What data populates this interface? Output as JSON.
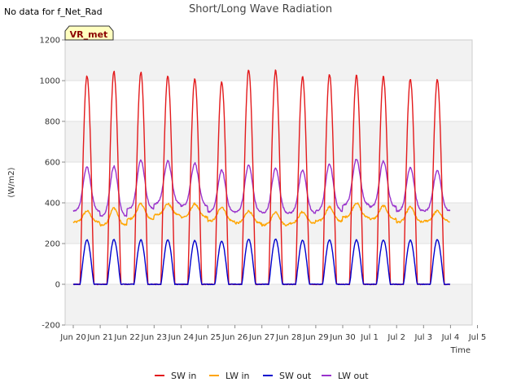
{
  "note": "No data for f_Net_Rad",
  "badge": "VR_met",
  "chart_data": {
    "type": "line",
    "title": "Short/Long Wave Radiation",
    "xlabel": "Time",
    "ylabel": "(W/m2)",
    "ylim": [
      -200,
      1200
    ],
    "xlim": [
      0,
      15
    ],
    "yticks": [
      -200,
      0,
      200,
      400,
      600,
      800,
      1000,
      1200
    ],
    "xticks": [
      {
        "x": 0,
        "label": "Jun 20"
      },
      {
        "x": 1,
        "label": "Jun 21"
      },
      {
        "x": 2,
        "label": "Jun 22"
      },
      {
        "x": 3,
        "label": "Jun 23"
      },
      {
        "x": 4,
        "label": "Jun 24"
      },
      {
        "x": 5,
        "label": "Jun 25"
      },
      {
        "x": 6,
        "label": "Jun 26"
      },
      {
        "x": 7,
        "label": "Jun 27"
      },
      {
        "x": 8,
        "label": "Jun 28"
      },
      {
        "x": 9,
        "label": "Jun 29"
      },
      {
        "x": 10,
        "label": "Jun 30"
      },
      {
        "x": 11,
        "label": "Jul 1"
      },
      {
        "x": 12,
        "label": "Jul 2"
      },
      {
        "x": 13,
        "label": "Jul 3"
      },
      {
        "x": 14,
        "label": "Jul 4"
      },
      {
        "x": 15,
        "label": "Jul 5"
      }
    ],
    "grid": true,
    "legend_position": "bottom",
    "series": [
      {
        "name": "SW in",
        "color": "#e31a1c",
        "daily_peaks": [
          1025,
          1045,
          1040,
          1025,
          1010,
          995,
          1055,
          1050,
          1020,
          1030,
          1025,
          1020,
          1010,
          1005
        ]
      },
      {
        "name": "LW in",
        "color": "#ffa500",
        "daily_min": [
          305,
          290,
          320,
          340,
          330,
          310,
          300,
          290,
          300,
          310,
          330,
          320,
          305,
          310
        ],
        "daily_max": [
          360,
          375,
          395,
          395,
          395,
          380,
          360,
          355,
          355,
          380,
          400,
          385,
          380,
          360
        ]
      },
      {
        "name": "SW out",
        "color": "#0000cd",
        "daily_peaks": [
          218,
          220,
          218,
          218,
          215,
          212,
          222,
          222,
          215,
          218,
          218,
          218,
          216,
          220
        ]
      },
      {
        "name": "LW out",
        "color": "#9932cc",
        "daily_min": [
          360,
          335,
          370,
          395,
          385,
          355,
          355,
          350,
          350,
          360,
          390,
          380,
          360,
          360
        ],
        "daily_max": [
          575,
          580,
          610,
          605,
          595,
          560,
          585,
          570,
          560,
          590,
          615,
          605,
          575,
          560
        ]
      }
    ]
  }
}
